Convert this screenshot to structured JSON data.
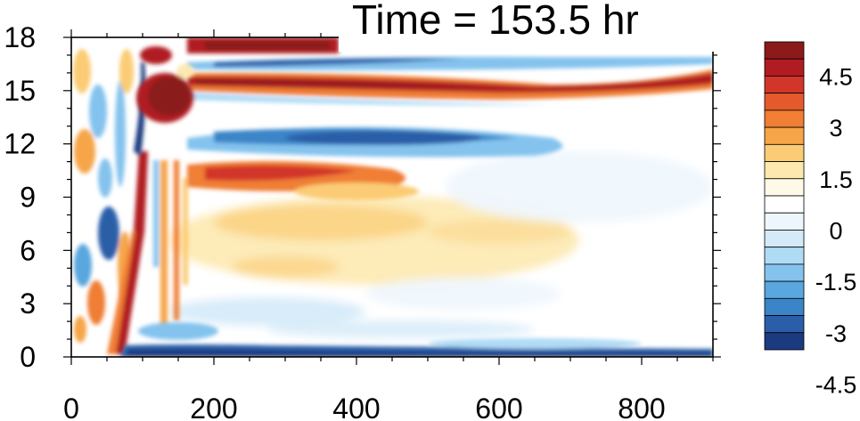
{
  "chart_data": {
    "type": "heatmap",
    "title": "Time = 153.5 hr",
    "xlabel": "",
    "ylabel": "",
    "xlim": [
      0,
      900
    ],
    "ylim": [
      0,
      18
    ],
    "x_ticks": [
      "0",
      "200",
      "400",
      "600",
      "800"
    ],
    "y_ticks": [
      "0",
      "3",
      "6",
      "9",
      "12",
      "15",
      "18"
    ],
    "colorbar": {
      "ticks": [
        "4.5",
        "3",
        "1.5",
        "0",
        "-1.5",
        "-3",
        "-4.5"
      ],
      "levels": [
        -5.25,
        -4.5,
        -3.75,
        -3,
        -2.25,
        -1.5,
        -0.75,
        -0.25,
        0.25,
        0.75,
        1.5,
        2.25,
        3,
        3.75,
        4.5,
        5.25
      ],
      "colors_high_to_low": [
        "#8b1a1a",
        "#b01c22",
        "#d2362a",
        "#e45a2c",
        "#f07e34",
        "#f6a548",
        "#fbcc75",
        "#fde9b0",
        "#fff9e8",
        "#ffffff",
        "#eef6fd",
        "#d4eaf8",
        "#b0dbf5",
        "#84c3ee",
        "#5aa6de",
        "#3a85c8",
        "#2a5ea8",
        "#1b3a80"
      ]
    },
    "features": [
      {
        "name": "surface negative band",
        "x": [
          70,
          900
        ],
        "y": [
          0,
          0.9
        ],
        "value": -4.5
      },
      {
        "name": "rising positive front",
        "x": [
          30,
          110
        ],
        "y": [
          0,
          12
        ],
        "value": 4.0
      },
      {
        "name": "leading negative streak",
        "x": [
          90,
          105
        ],
        "y": [
          8,
          16
        ],
        "value": -5.0
      },
      {
        "name": "strong positive core",
        "x": [
          105,
          215
        ],
        "y": [
          13,
          17
        ],
        "value": 5.5
      },
      {
        "name": "upper positive band",
        "x": [
          160,
          380
        ],
        "y": [
          16.8,
          18
        ],
        "value": 5.5
      },
      {
        "name": "upper negative band",
        "x": [
          160,
          900
        ],
        "y": [
          16,
          17
        ],
        "value": -3.5
      },
      {
        "name": "positive jet band",
        "x": [
          160,
          900
        ],
        "y": [
          14.5,
          16
        ],
        "value": 5.0
      },
      {
        "name": "negative band",
        "x": [
          160,
          640
        ],
        "y": [
          11.2,
          13.5
        ],
        "value": -3.5
      },
      {
        "name": "positive band",
        "x": [
          160,
          500
        ],
        "y": [
          9.5,
          11
        ],
        "value": 3.5
      },
      {
        "name": "weak positive region",
        "x": [
          200,
          700
        ],
        "y": [
          5,
          8.5
        ],
        "value": 1.0
      }
    ]
  }
}
